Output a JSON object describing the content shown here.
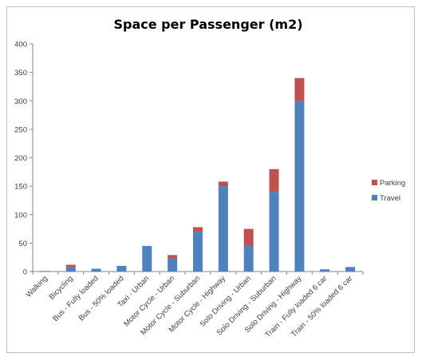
{
  "chart_data": {
    "type": "bar",
    "stacked": true,
    "title": "Space per Passenger (m2)",
    "xlabel": "",
    "ylabel": "",
    "ylim": [
      0,
      400
    ],
    "yticks": [
      "0",
      "50",
      "100",
      "150",
      "200",
      "250",
      "300",
      "350",
      "400"
    ],
    "grid": false,
    "legend_position": "right",
    "categories": [
      "Walking",
      "Bicycling",
      "Bus - Fully loaded",
      "Bus - 50% loaded",
      "Taxi - Urban",
      "Motor Cycle - Urban",
      "Motor Cycle - Suburban",
      "Motor Cycle - Highway",
      "Solo Driving - Urban",
      "Solo Driving - Suburban",
      "Solo Driving - Highway",
      "Train - Fully loaded 6 car",
      "Train - 50% loaded 6 car"
    ],
    "series": [
      {
        "name": "Travel",
        "color": "#4f81bd",
        "values": [
          1,
          8,
          5,
          10,
          45,
          23,
          70,
          150,
          45,
          140,
          300,
          4,
          8
        ]
      },
      {
        "name": "Parking",
        "color": "#c0504d",
        "values": [
          0,
          4,
          0,
          0,
          0,
          6,
          8,
          8,
          30,
          40,
          40,
          0,
          0
        ]
      }
    ],
    "legend_order": [
      "Parking",
      "Travel"
    ]
  }
}
